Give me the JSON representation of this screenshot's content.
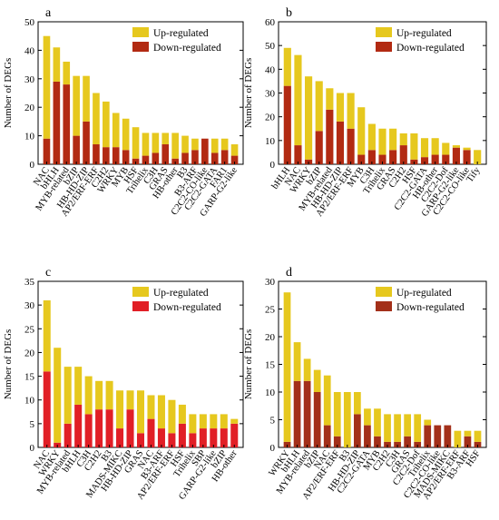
{
  "colors": {
    "up": "#E6C81E",
    "down_ab": "#B22A12",
    "down_c": "#E11F26",
    "down_d": "#A3301A",
    "axis": "#000000"
  },
  "chart_data": [
    {
      "type": "bar",
      "panel_label": "a",
      "ylabel": "Number of DEGs",
      "ylim": [
        0,
        50
      ],
      "yticks": [
        0,
        10,
        20,
        30,
        40,
        50
      ],
      "legend": [
        "Up-regulated",
        "Down-regulated"
      ],
      "legend_position": "top-right",
      "categories": [
        "NAC",
        "bHLH",
        "MYB-related",
        "bZIP",
        "HB-HD-ZIP",
        "AP2/ERF-ERF",
        "C2H2",
        "WRKY",
        "MYB",
        "HSF",
        "Trihelix",
        "C3H",
        "GRAS",
        "HB-other",
        "B3",
        "B3-ARF",
        "C2C2-CO-like",
        "C2C2-GATA",
        "FAR1",
        "GARP-G2-like"
      ],
      "series": [
        {
          "name": "Up-regulated",
          "values": [
            36,
            12,
            8,
            21,
            16,
            18,
            16,
            12,
            11,
            11,
            8,
            7,
            4,
            9,
            6,
            4,
            0,
            5,
            4,
            4
          ]
        },
        {
          "name": "Down-regulated",
          "values": [
            9,
            29,
            28,
            10,
            15,
            7,
            6,
            6,
            5,
            2,
            3,
            4,
            7,
            2,
            4,
            5,
            9,
            4,
            5,
            3
          ]
        }
      ]
    },
    {
      "type": "bar",
      "panel_label": "b",
      "ylabel": "Number of DEGs",
      "ylim": [
        0,
        60
      ],
      "yticks": [
        0,
        10,
        20,
        30,
        40,
        50,
        60
      ],
      "legend": [
        "Up-regulated",
        "Down-regulated"
      ],
      "legend_position": "top-right",
      "categories": [
        "bHLH",
        "NAC",
        "WRKY",
        "bZIP",
        "MYB-related",
        "HB-HD-ZIP",
        "AP2/ERF-ERF",
        "MYB",
        "C3H",
        "Trihelix",
        "GRAS",
        "C2H2",
        "HSF",
        "C2C2-GATA",
        "HB-other",
        "C2C2-Dof",
        "GARP-G2-like",
        "C2C2-CO-like",
        "Tify"
      ],
      "series": [
        {
          "name": "Up-regulated",
          "values": [
            16,
            38,
            35,
            21,
            9,
            12,
            15,
            20,
            11,
            11,
            9,
            5,
            11,
            8,
            7,
            5,
            1,
            1,
            6
          ]
        },
        {
          "name": "Down-regulated",
          "values": [
            33,
            8,
            2,
            14,
            23,
            18,
            15,
            4,
            6,
            4,
            6,
            8,
            2,
            3,
            4,
            4,
            7,
            6,
            0
          ]
        }
      ]
    },
    {
      "type": "bar",
      "panel_label": "c",
      "ylabel": "Number of DEGs",
      "ylim": [
        0,
        35
      ],
      "yticks": [
        0,
        5,
        10,
        15,
        20,
        25,
        30,
        35
      ],
      "legend": [
        "Up-regulated",
        "Down-regulated"
      ],
      "legend_position": "top-right",
      "categories": [
        "NAC",
        "WRKY",
        "MYB-related",
        "bHLH",
        "C3H",
        "C2H2",
        "B3",
        "MADS-MIKC",
        "HB-HD-ZIP",
        "GRAS",
        "NAC",
        "B3-ARF",
        "AP2/ERF-ERF",
        "HSF",
        "Trihelix",
        "SBP",
        "GARP-G2-like",
        "bZIP",
        "HB-other"
      ],
      "series": [
        {
          "name": "Up-regulated",
          "values": [
            15,
            20,
            12,
            8,
            8,
            6,
            6,
            8,
            4,
            9,
            5,
            7,
            7,
            4,
            4,
            3,
            3,
            3,
            1
          ]
        },
        {
          "name": "Down-regulated",
          "values": [
            16,
            1,
            5,
            9,
            7,
            8,
            8,
            4,
            8,
            3,
            6,
            4,
            3,
            5,
            3,
            4,
            4,
            4,
            5
          ]
        }
      ]
    },
    {
      "type": "bar",
      "panel_label": "d",
      "ylabel": "Number of DEGs",
      "ylim": [
        0,
        30
      ],
      "yticks": [
        0,
        5,
        10,
        15,
        20,
        25,
        30
      ],
      "legend": [
        "Up-regulated",
        "Down-regulated"
      ],
      "legend_position": "top-right",
      "categories": [
        "WRKY",
        "bHLH",
        "MYB-related",
        "bZIP",
        "NAC",
        "AP2/ERF-ERF",
        "B3",
        "HB-HD-ZIP",
        "C2C2-GATA",
        "MYB",
        "C2H2",
        "C3H",
        "GRAS",
        "C2C2-Dof",
        "Trihelix",
        "C2C2-CO-like",
        "MADS-MIKC",
        "AP2/ERF-ERF",
        "B3-ARF",
        "HSF"
      ],
      "series": [
        {
          "name": "Up-regulated",
          "values": [
            27,
            7,
            4,
            4,
            9,
            8,
            10,
            4,
            3,
            5,
            5,
            5,
            4,
            5,
            1,
            0,
            0,
            3,
            1,
            2
          ]
        },
        {
          "name": "Down-regulated",
          "values": [
            1,
            12,
            12,
            10,
            4,
            2,
            0,
            6,
            4,
            2,
            1,
            1,
            2,
            1,
            4,
            4,
            4,
            0,
            2,
            1
          ]
        }
      ]
    }
  ]
}
